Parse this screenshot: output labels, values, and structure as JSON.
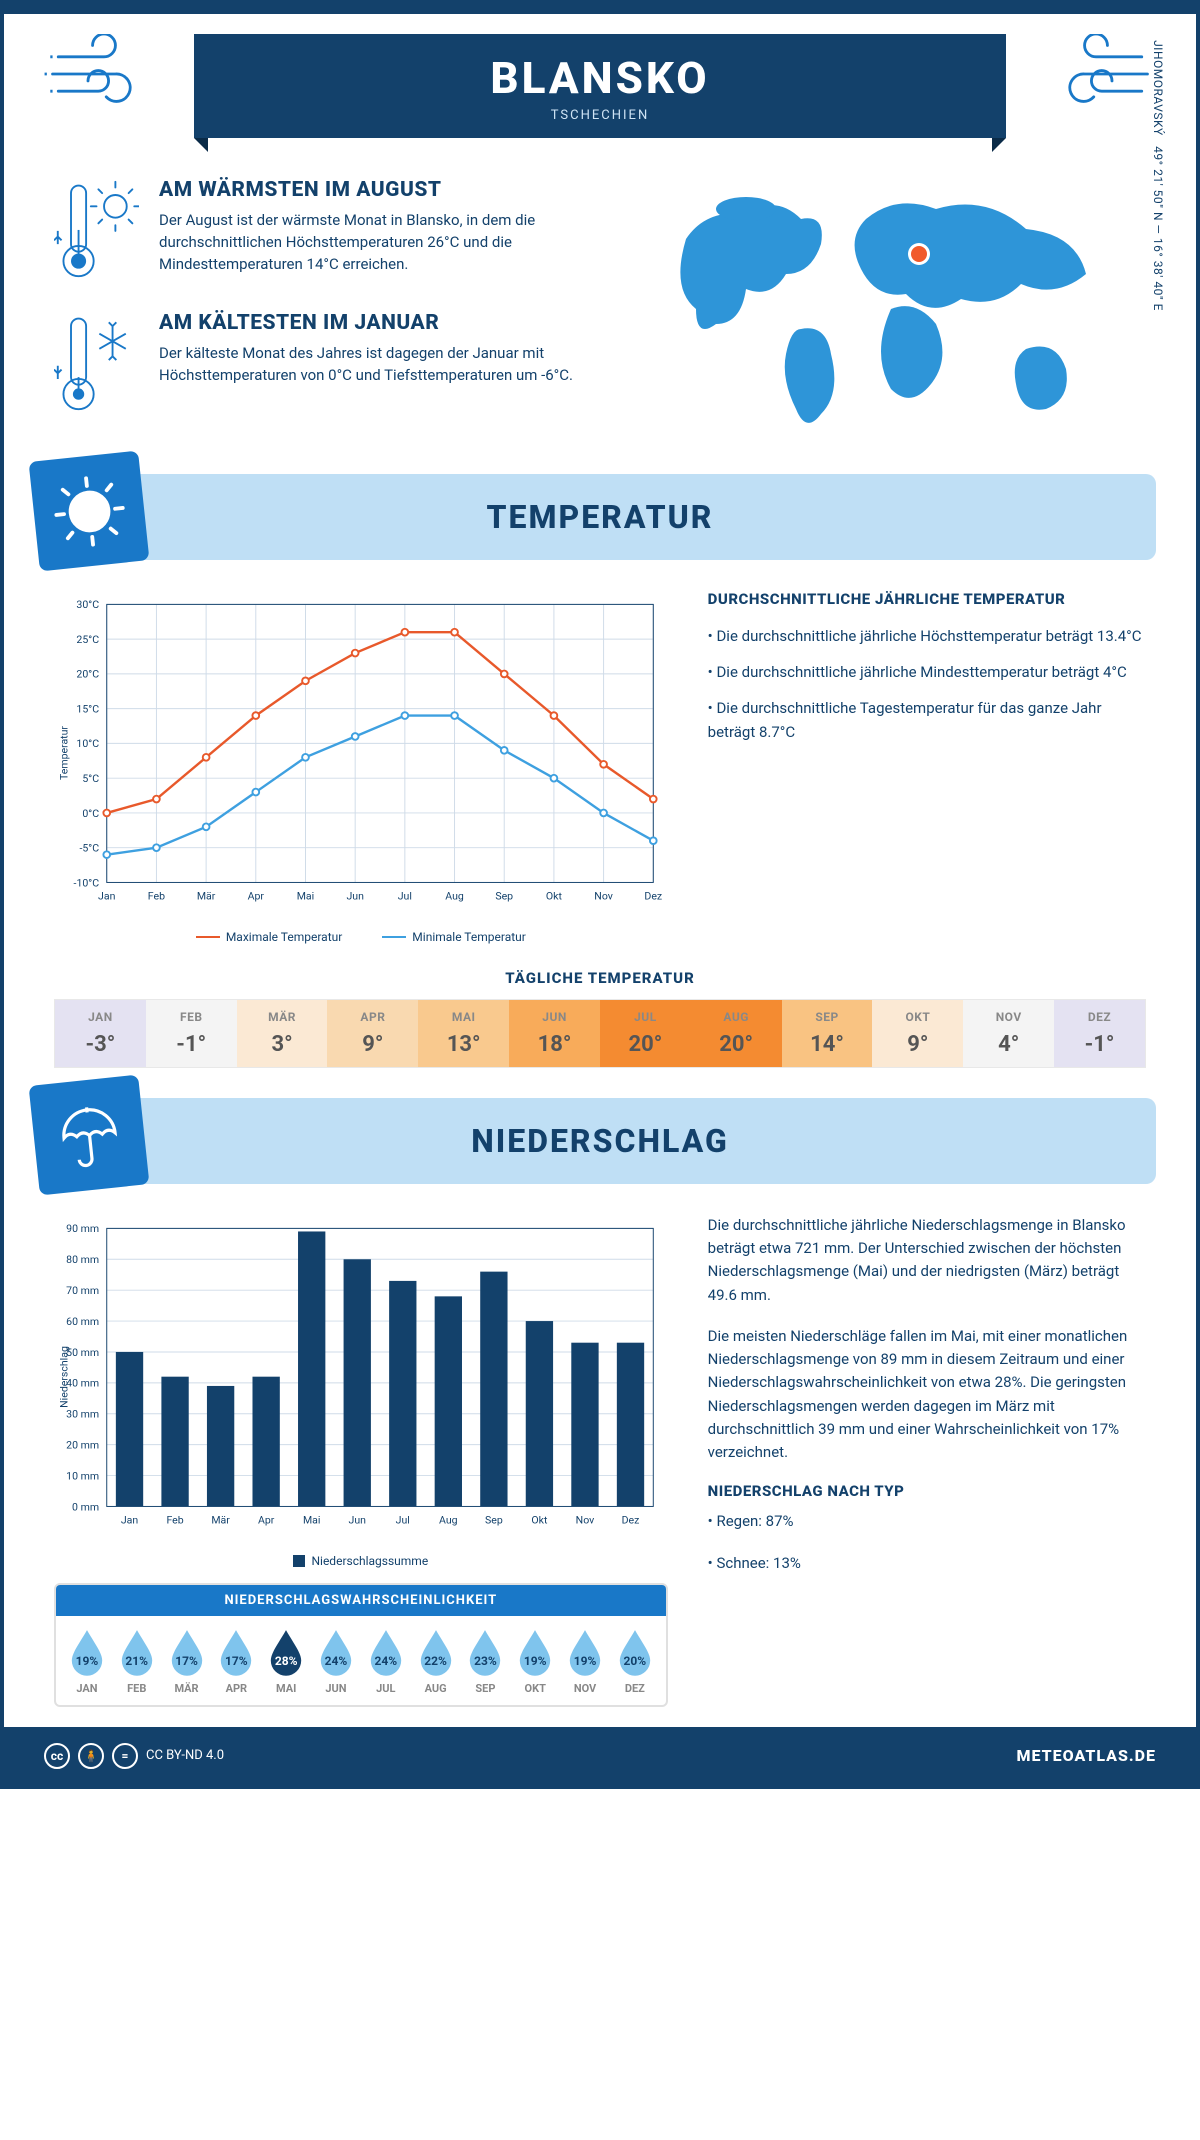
{
  "header": {
    "city": "BLANSKO",
    "country": "TSCHECHIEN",
    "coords": "49° 21' 50\" N — 16° 38' 40\" E",
    "region": "JIHOMORAVSKÝ"
  },
  "facts": {
    "warm_title": "AM WÄRMSTEN IM AUGUST",
    "warm_text": "Der August ist der wärmste Monat in Blansko, in dem die durchschnittlichen Höchsttemperaturen 26°C und die Mindesttemperaturen 14°C erreichen.",
    "cold_title": "AM KÄLTESTEN IM JANUAR",
    "cold_text": "Der kälteste Monat des Jahres ist dagegen der Januar mit Höchsttemperaturen von 0°C und Tiefsttemperaturen um -6°C."
  },
  "temp_section": {
    "heading": "TEMPERATUR",
    "info_title": "DURCHSCHNITTLICHE JÄHRLICHE TEMPERATUR",
    "bullet1": "• Die durchschnittliche jährliche Höchsttemperatur beträgt 13.4°C",
    "bullet2": "• Die durchschnittliche jährliche Mindesttemperatur beträgt 4°C",
    "bullet3": "• Die durchschnittliche Tagestemperatur für das ganze Jahr beträgt 8.7°C",
    "legend_max": "Maximale Temperatur",
    "legend_min": "Minimale Temperatur",
    "y_label": "Temperatur",
    "daily_title": "TÄGLICHE TEMPERATUR"
  },
  "temp_chart": {
    "months": [
      "Jan",
      "Feb",
      "Mär",
      "Apr",
      "Mai",
      "Jun",
      "Jul",
      "Aug",
      "Sep",
      "Okt",
      "Nov",
      "Dez"
    ],
    "max_values": [
      0,
      2,
      8,
      14,
      19,
      23,
      26,
      26,
      20,
      14,
      7,
      2
    ],
    "min_values": [
      -6,
      -5,
      -2,
      3,
      8,
      11,
      14,
      14,
      9,
      5,
      0,
      -4
    ],
    "max_color": "#e8592b",
    "min_color": "#3ea0e0",
    "grid_color": "#cfdbe8",
    "ylim": [
      -10,
      30
    ],
    "ytick_step": 5
  },
  "daily_temp": {
    "months": [
      "JAN",
      "FEB",
      "MÄR",
      "APR",
      "MAI",
      "JUN",
      "JUL",
      "AUG",
      "SEP",
      "OKT",
      "NOV",
      "DEZ"
    ],
    "values": [
      "-3°",
      "-1°",
      "3°",
      "9°",
      "13°",
      "18°",
      "20°",
      "20°",
      "14°",
      "9°",
      "4°",
      "-1°"
    ],
    "bg_colors": [
      "#e4e2f2",
      "#f4f4f4",
      "#fbe9d4",
      "#f9d9b0",
      "#f9c98e",
      "#f8ab5a",
      "#f48b31",
      "#f48b31",
      "#f9c382",
      "#fbe9d4",
      "#f4f4f4",
      "#e4e2f2"
    ]
  },
  "precip_section": {
    "heading": "NIEDERSCHLAG",
    "para1": "Die durchschnittliche jährliche Niederschlagsmenge in Blansko beträgt etwa 721 mm. Der Unterschied zwischen der höchsten Niederschlagsmenge (Mai) und der niedrigsten (März) beträgt 49.6 mm.",
    "para2": "Die meisten Niederschläge fallen im Mai, mit einer monatlichen Niederschlagsmenge von 89 mm in diesem Zeitraum und einer Niederschlagswahrscheinlichkeit von etwa 28%. Die geringsten Niederschlagsmengen werden dagegen im März mit durchschnittlich 39 mm und einer Wahrscheinlichkeit von 17% verzeichnet.",
    "type_title": "NIEDERSCHLAG NACH TYP",
    "type_rain": "• Regen: 87%",
    "type_snow": "• Schnee: 13%",
    "legend": "Niederschlagssumme",
    "y_label": "Niederschlag",
    "prob_title": "NIEDERSCHLAGSWAHRSCHEINLICHKEIT"
  },
  "precip_chart": {
    "months": [
      "Jan",
      "Feb",
      "Mär",
      "Apr",
      "Mai",
      "Jun",
      "Jul",
      "Aug",
      "Sep",
      "Okt",
      "Nov",
      "Dez"
    ],
    "values": [
      50,
      42,
      39,
      42,
      89,
      80,
      73,
      68,
      76,
      60,
      53,
      53
    ],
    "bar_color": "#13416b",
    "grid_color": "#cfdbe8",
    "ylim": [
      0,
      90
    ],
    "ytick_step": 10
  },
  "precip_prob": {
    "months": [
      "JAN",
      "FEB",
      "MÄR",
      "APR",
      "MAI",
      "JUN",
      "JUL",
      "AUG",
      "SEP",
      "OKT",
      "NOV",
      "DEZ"
    ],
    "values": [
      "19%",
      "21%",
      "17%",
      "17%",
      "28%",
      "24%",
      "24%",
      "22%",
      "23%",
      "19%",
      "19%",
      "20%"
    ],
    "highlight_index": 4,
    "drop_color": "#7fc4ed",
    "drop_highlight": "#13416b"
  },
  "footer": {
    "license": "CC BY-ND 4.0",
    "brand": "METEOATLAS.DE"
  },
  "colors": {
    "brand_dark": "#13416b",
    "brand_mid": "#1978c8",
    "brand_light": "#bfdff5"
  }
}
